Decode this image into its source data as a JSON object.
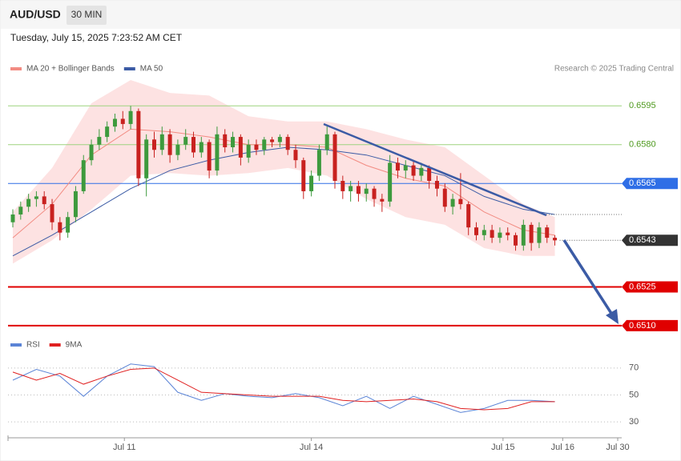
{
  "header": {
    "symbol": "AUD/USD",
    "interval": "30 MIN",
    "timestamp": "Tuesday, July 15, 2025 7:23:52 AM CET"
  },
  "chart_data": [
    {
      "type": "candlestick",
      "credit": "Research © 2025 Trading Central",
      "ylim": [
        0.65075,
        0.6605
      ],
      "xlim": [
        0,
        77
      ],
      "up_color": "#3d9a3d",
      "down_color": "#c8211f",
      "open": [
        0.655,
        0.6553,
        0.6556,
        0.6559,
        0.656,
        0.6557,
        0.655,
        0.6546,
        0.6552,
        0.6562,
        0.6574,
        0.658,
        0.6583,
        0.6587,
        0.659,
        0.6588,
        0.6593,
        0.6567,
        0.6582,
        0.6578,
        0.6584,
        0.6576,
        0.658,
        0.6583,
        0.6577,
        0.6581,
        0.657,
        0.6584,
        0.6579,
        0.6583,
        0.6575,
        0.658,
        0.6578,
        0.6582,
        0.6581,
        0.6583,
        0.6578,
        0.6574,
        0.6562,
        0.6568,
        0.6578,
        0.6584,
        0.6566,
        0.6562,
        0.6564,
        0.6561,
        0.6563,
        0.6559,
        0.6558,
        0.6573,
        0.657,
        0.6572,
        0.6568,
        0.6571,
        0.6566,
        0.6563,
        0.6556,
        0.6559,
        0.6557,
        0.6548,
        0.6545,
        0.6547,
        0.6544,
        0.6546,
        0.6545,
        0.6541,
        0.6549,
        0.6542,
        0.6548,
        0.6544
      ],
      "high": [
        0.6555,
        0.6558,
        0.6561,
        0.6562,
        0.6562,
        0.6559,
        0.6552,
        0.6554,
        0.6564,
        0.6576,
        0.6582,
        0.6586,
        0.6589,
        0.6592,
        0.6593,
        0.6595,
        0.6594,
        0.6584,
        0.6585,
        0.6587,
        0.6586,
        0.6582,
        0.6586,
        0.6585,
        0.6583,
        0.6582,
        0.6587,
        0.6586,
        0.6585,
        0.6584,
        0.6582,
        0.6582,
        0.6583,
        0.6583,
        0.6584,
        0.6584,
        0.658,
        0.6575,
        0.657,
        0.658,
        0.6587,
        0.6585,
        0.6568,
        0.6566,
        0.6566,
        0.6565,
        0.6564,
        0.6561,
        0.6576,
        0.6575,
        0.6574,
        0.6574,
        0.6573,
        0.6572,
        0.6568,
        0.6565,
        0.6561,
        0.6569,
        0.6558,
        0.655,
        0.6549,
        0.6549,
        0.6548,
        0.6548,
        0.6546,
        0.6551,
        0.655,
        0.655,
        0.6549,
        0.6545
      ],
      "low": [
        0.6548,
        0.6551,
        0.6554,
        0.6556,
        0.6555,
        0.6547,
        0.6543,
        0.6544,
        0.655,
        0.6561,
        0.6572,
        0.6578,
        0.6581,
        0.6585,
        0.6586,
        0.6586,
        0.6564,
        0.656,
        0.6575,
        0.6576,
        0.6573,
        0.6574,
        0.6578,
        0.6575,
        0.6575,
        0.6567,
        0.6568,
        0.6577,
        0.6577,
        0.6572,
        0.6573,
        0.6576,
        0.6576,
        0.6579,
        0.6579,
        0.6576,
        0.6571,
        0.6559,
        0.656,
        0.6566,
        0.6576,
        0.6563,
        0.6559,
        0.6558,
        0.6558,
        0.6558,
        0.6556,
        0.6554,
        0.6556,
        0.6567,
        0.6567,
        0.6566,
        0.6566,
        0.6563,
        0.656,
        0.6554,
        0.6553,
        0.6555,
        0.6545,
        0.6543,
        0.6543,
        0.6542,
        0.6542,
        0.6543,
        0.6539,
        0.6539,
        0.6539,
        0.654,
        0.6542,
        0.6541
      ],
      "close": [
        0.6553,
        0.6556,
        0.6559,
        0.656,
        0.6557,
        0.655,
        0.6546,
        0.6552,
        0.6562,
        0.6574,
        0.658,
        0.6583,
        0.6587,
        0.659,
        0.6588,
        0.6593,
        0.6567,
        0.6582,
        0.6578,
        0.6584,
        0.6576,
        0.658,
        0.6583,
        0.6577,
        0.6581,
        0.657,
        0.6584,
        0.6579,
        0.6583,
        0.6575,
        0.658,
        0.6578,
        0.6582,
        0.6581,
        0.6583,
        0.6578,
        0.6574,
        0.6562,
        0.6568,
        0.6578,
        0.6584,
        0.6566,
        0.6562,
        0.6564,
        0.6561,
        0.6563,
        0.6559,
        0.6558,
        0.6573,
        0.657,
        0.6572,
        0.6568,
        0.6571,
        0.6566,
        0.6563,
        0.6556,
        0.6559,
        0.6557,
        0.6548,
        0.6545,
        0.6547,
        0.6544,
        0.6546,
        0.6545,
        0.6541,
        0.6549,
        0.6542,
        0.6548,
        0.6544,
        0.6543
      ],
      "series": [
        {
          "name": "MA 20 + Bollinger Bands",
          "color": "#f28b82",
          "band_color": "#fde2e2",
          "x": [
            0,
            5,
            10,
            15,
            20,
            25,
            30,
            35,
            40,
            45,
            50,
            55,
            60,
            65,
            69
          ],
          "values": [
            0.6544,
            0.6557,
            0.6576,
            0.6586,
            0.6585,
            0.6583,
            0.658,
            0.658,
            0.6579,
            0.6572,
            0.6567,
            0.6564,
            0.6554,
            0.6547,
            0.6545
          ],
          "upper": [
            0.6554,
            0.6571,
            0.6596,
            0.6605,
            0.66,
            0.6599,
            0.6591,
            0.6589,
            0.6589,
            0.6586,
            0.6582,
            0.6579,
            0.6568,
            0.6557,
            0.6552
          ],
          "lower": [
            0.6534,
            0.6543,
            0.6555,
            0.6568,
            0.6569,
            0.6568,
            0.6569,
            0.6571,
            0.6568,
            0.6559,
            0.6552,
            0.6549,
            0.654,
            0.6537,
            0.6537
          ]
        },
        {
          "name": "MA 50",
          "color": "#3b5ba5",
          "x": [
            0,
            5,
            10,
            15,
            20,
            25,
            30,
            35,
            40,
            45,
            50,
            55,
            60,
            65,
            69
          ],
          "values": [
            0.6537,
            0.6545,
            0.6554,
            0.6563,
            0.657,
            0.6574,
            0.6577,
            0.6579,
            0.6578,
            0.6576,
            0.6572,
            0.6568,
            0.656,
            0.6555,
            0.6553
          ]
        }
      ],
      "levels": [
        {
          "value": 0.6595,
          "color": "#9ed37f",
          "text_color": "#4f9a1f",
          "style": "thin"
        },
        {
          "value": 0.658,
          "label": "0.6580",
          "color": "#9ed37f",
          "text_color": "#4f9a1f",
          "style": "thin"
        },
        {
          "value": 0.6565,
          "color": "#2f6ee6",
          "text_color": "#ffffff",
          "tag": "#2f6ee6",
          "style": "thin"
        },
        {
          "value": 0.6543,
          "color": "#555555",
          "text_color": "#ffffff",
          "tag": "#333333",
          "style": "dotted"
        },
        {
          "value": 0.6525,
          "color": "#e00000",
          "text_color": "#ffffff",
          "tag": "#e00000",
          "style": "thick"
        },
        {
          "value": 0.651,
          "label": "0.6510",
          "color": "#e00000",
          "text_color": "#ffffff",
          "tag": "#e00000",
          "style": "thick"
        }
      ]
    },
    {
      "type": "line",
      "ylim": [
        20,
        80
      ],
      "yticks": [
        30,
        50,
        70
      ],
      "xlim": [
        0,
        77
      ],
      "grid": true,
      "xticks": [
        {
          "value": 14.2,
          "label": "Jul 11"
        },
        {
          "value": 38,
          "label": "Jul 14"
        },
        {
          "value": 62.4,
          "label": "Jul 15"
        },
        {
          "value": 70,
          "label": "Jul 16"
        },
        {
          "value": 77,
          "label": "Jul 30"
        }
      ],
      "series": [
        {
          "name": "RSI",
          "color": "#5b84d6",
          "x": [
            0,
            3,
            6,
            9,
            12,
            15,
            18,
            21,
            24,
            27,
            30,
            33,
            36,
            39,
            42,
            45,
            48,
            51,
            54,
            57,
            60,
            63,
            66,
            69
          ],
          "values": [
            61,
            69,
            64,
            49,
            64,
            73,
            71,
            52,
            46,
            51,
            49,
            48,
            51,
            48,
            42,
            49,
            40,
            49,
            43,
            37,
            40,
            46,
            46,
            45
          ]
        },
        {
          "name": "9MA",
          "color": "#e02020",
          "x": [
            0,
            3,
            6,
            9,
            12,
            15,
            18,
            21,
            24,
            27,
            30,
            33,
            36,
            39,
            42,
            45,
            48,
            51,
            54,
            57,
            60,
            63,
            66,
            69
          ],
          "values": [
            67,
            61,
            66,
            58,
            64,
            69,
            70,
            61,
            52,
            51,
            50,
            49,
            49,
            49,
            46,
            45,
            46,
            47,
            45,
            40,
            39,
            40,
            45,
            45
          ]
        }
      ]
    }
  ]
}
